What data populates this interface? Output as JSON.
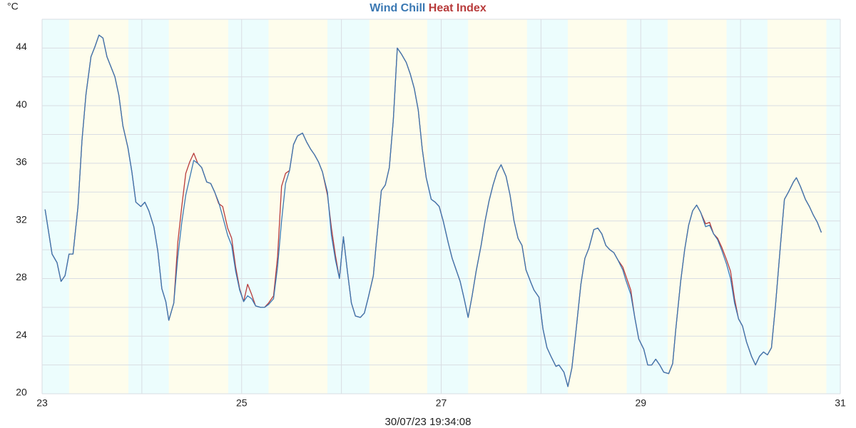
{
  "chart_data": {
    "type": "line",
    "y_label": "°C",
    "x_label": "30/07/23 19:34:08",
    "xlim": [
      23,
      31
    ],
    "xticks": [
      23,
      25,
      27,
      29,
      31
    ],
    "x_minor_ticks": [
      24,
      26,
      28,
      30
    ],
    "ylim": [
      20,
      46
    ],
    "yticks": [
      20,
      24,
      28,
      32,
      36,
      40,
      44
    ],
    "y_minor_ticks": [
      22,
      26,
      30,
      34,
      38,
      42,
      46
    ],
    "grid": true,
    "night_color": "#ecfdfd",
    "day_color": "#fefdec",
    "day_periods": [
      [
        23.27,
        23.865
      ],
      [
        24.27,
        24.865
      ],
      [
        25.27,
        25.86
      ],
      [
        26.28,
        26.86
      ],
      [
        27.27,
        27.86
      ],
      [
        28.27,
        28.86
      ],
      [
        29.27,
        29.86
      ],
      [
        30.27,
        30.86
      ]
    ],
    "x": [
      23.03,
      23.1,
      23.15,
      23.19,
      23.23,
      23.27,
      23.31,
      23.36,
      23.4,
      23.44,
      23.49,
      23.53,
      23.57,
      23.61,
      23.65,
      23.69,
      23.73,
      23.77,
      23.81,
      23.86,
      23.9,
      23.94,
      23.99,
      24.03,
      24.07,
      24.12,
      24.16,
      24.2,
      24.24,
      24.27,
      24.32,
      24.36,
      24.4,
      24.44,
      24.48,
      24.52,
      24.56,
      24.6,
      24.65,
      24.69,
      24.73,
      24.77,
      24.81,
      24.86,
      24.9,
      24.94,
      24.98,
      25.02,
      25.06,
      25.1,
      25.14,
      25.19,
      25.23,
      25.27,
      25.32,
      25.36,
      25.4,
      25.44,
      25.48,
      25.52,
      25.56,
      25.61,
      25.65,
      25.69,
      25.73,
      25.77,
      25.81,
      25.86,
      25.9,
      25.94,
      25.98,
      26.02,
      26.06,
      26.1,
      26.14,
      26.19,
      26.23,
      26.27,
      26.32,
      26.35,
      26.4,
      26.44,
      26.48,
      26.52,
      26.56,
      26.6,
      26.65,
      26.69,
      26.73,
      26.77,
      26.81,
      26.85,
      26.9,
      26.94,
      26.98,
      27.02,
      27.07,
      27.11,
      27.15,
      27.19,
      27.23,
      27.27,
      27.31,
      27.35,
      27.4,
      27.44,
      27.48,
      27.52,
      27.56,
      27.6,
      27.65,
      27.69,
      27.73,
      27.77,
      27.81,
      27.85,
      27.9,
      27.93,
      27.98,
      28.02,
      28.06,
      28.1,
      28.15,
      28.18,
      28.23,
      28.27,
      28.31,
      28.35,
      28.4,
      28.44,
      28.48,
      28.53,
      28.57,
      28.61,
      28.65,
      28.69,
      28.73,
      28.77,
      28.82,
      28.85,
      28.9,
      28.94,
      28.98,
      29.03,
      29.07,
      29.11,
      29.15,
      29.19,
      29.23,
      29.28,
      29.32,
      29.35,
      29.4,
      29.44,
      29.48,
      29.52,
      29.56,
      29.6,
      29.65,
      29.69,
      29.73,
      29.77,
      29.81,
      29.86,
      29.9,
      29.94,
      29.98,
      30.02,
      30.06,
      30.11,
      30.15,
      30.19,
      30.23,
      30.27,
      30.31,
      30.35,
      30.4,
      30.44,
      30.48,
      30.53,
      30.56,
      30.6,
      30.65,
      30.69,
      30.73,
      30.77,
      30.81
    ],
    "series": [
      {
        "name": "Heat Index",
        "color": "#b83b3b",
        "values": [
          32.8,
          29.7,
          29.1,
          27.8,
          28.2,
          29.7,
          29.7,
          33.0,
          37.6,
          40.8,
          43.4,
          44.1,
          44.9,
          44.7,
          43.4,
          42.7,
          42.0,
          40.7,
          38.6,
          37.1,
          35.4,
          33.3,
          33.0,
          33.3,
          32.7,
          31.6,
          29.9,
          27.3,
          26.4,
          25.1,
          26.3,
          30.5,
          33.0,
          35.3,
          36.1,
          36.7,
          36.0,
          35.7,
          34.7,
          34.6,
          34.0,
          33.2,
          33.0,
          31.5,
          30.8,
          28.8,
          27.3,
          26.4,
          27.6,
          26.9,
          26.1,
          26.0,
          26.0,
          26.3,
          26.8,
          29.5,
          34.4,
          35.3,
          35.5,
          37.3,
          37.9,
          38.1,
          37.5,
          37.0,
          36.6,
          36.1,
          35.4,
          33.8,
          31.5,
          29.6,
          28.0,
          30.9,
          28.5,
          26.3,
          25.4,
          25.3,
          25.6,
          26.7,
          28.2,
          30.5,
          34.1,
          34.5,
          35.7,
          39.0,
          44.0,
          43.6,
          43.0,
          42.2,
          41.2,
          39.7,
          37.0,
          35.0,
          33.5,
          33.3,
          33.0,
          32.0,
          30.5,
          29.4,
          28.6,
          27.8,
          26.6,
          25.3,
          26.8,
          28.5,
          30.3,
          32.0,
          33.4,
          34.5,
          35.4,
          35.9,
          35.1,
          33.8,
          32.0,
          30.8,
          30.3,
          28.6,
          27.7,
          27.2,
          26.7,
          24.5,
          23.2,
          22.6,
          21.9,
          22.0,
          21.5,
          20.5,
          21.8,
          24.3,
          27.6,
          29.4,
          30.1,
          31.4,
          31.5,
          31.1,
          30.3,
          30.0,
          29.8,
          29.3,
          28.8,
          28.2,
          27.2,
          25.3,
          23.8,
          23.1,
          22.0,
          22.0,
          22.4,
          22.0,
          21.5,
          21.4,
          22.1,
          24.4,
          27.8,
          30.0,
          31.7,
          32.7,
          33.1,
          32.6,
          31.8,
          31.9,
          31.1,
          30.8,
          30.2,
          29.3,
          28.5,
          26.6,
          25.2,
          24.7,
          23.6,
          22.6,
          22.0,
          22.6,
          22.9,
          22.7,
          23.2,
          26.1,
          30.3,
          33.5,
          34.0,
          34.7,
          35.0,
          34.4,
          33.5,
          33.0,
          32.4,
          31.9,
          31.2
        ]
      },
      {
        "name": "Wind Chill",
        "color": "#3a78b3",
        "values": [
          32.8,
          29.7,
          29.1,
          27.8,
          28.2,
          29.7,
          29.7,
          33.0,
          37.6,
          40.8,
          43.4,
          44.1,
          44.9,
          44.7,
          43.4,
          42.7,
          42.0,
          40.7,
          38.6,
          37.1,
          35.4,
          33.3,
          33.0,
          33.3,
          32.7,
          31.6,
          29.9,
          27.3,
          26.4,
          25.1,
          26.3,
          29.5,
          31.9,
          33.8,
          35.0,
          36.2,
          36.0,
          35.7,
          34.7,
          34.6,
          34.0,
          33.3,
          32.3,
          31.0,
          30.3,
          28.5,
          27.2,
          26.4,
          26.8,
          26.6,
          26.1,
          26.0,
          26.0,
          26.2,
          26.6,
          28.8,
          32.0,
          34.6,
          35.5,
          37.3,
          37.9,
          38.1,
          37.5,
          37.0,
          36.6,
          36.1,
          35.4,
          34.0,
          31.0,
          29.3,
          28.0,
          30.9,
          28.5,
          26.3,
          25.4,
          25.3,
          25.6,
          26.7,
          28.2,
          30.5,
          34.1,
          34.5,
          35.7,
          39.0,
          44.0,
          43.6,
          43.0,
          42.2,
          41.2,
          39.7,
          37.0,
          35.0,
          33.5,
          33.3,
          33.0,
          32.0,
          30.5,
          29.4,
          28.6,
          27.8,
          26.6,
          25.3,
          26.8,
          28.5,
          30.3,
          32.0,
          33.4,
          34.5,
          35.4,
          35.9,
          35.1,
          33.8,
          32.0,
          30.8,
          30.3,
          28.6,
          27.7,
          27.2,
          26.7,
          24.5,
          23.2,
          22.6,
          21.9,
          22.0,
          21.5,
          20.5,
          21.8,
          24.3,
          27.6,
          29.4,
          30.1,
          31.4,
          31.5,
          31.1,
          30.3,
          30.0,
          29.8,
          29.3,
          28.6,
          27.9,
          26.9,
          25.3,
          23.8,
          23.1,
          22.0,
          22.0,
          22.4,
          22.0,
          21.5,
          21.4,
          22.1,
          24.4,
          27.8,
          30.0,
          31.7,
          32.7,
          33.1,
          32.6,
          31.6,
          31.7,
          31.1,
          30.7,
          30.0,
          29.0,
          28.0,
          26.3,
          25.2,
          24.7,
          23.6,
          22.6,
          22.0,
          22.6,
          22.9,
          22.7,
          23.2,
          26.1,
          30.3,
          33.5,
          34.0,
          34.7,
          35.0,
          34.4,
          33.5,
          33.0,
          32.4,
          31.9,
          31.2
        ]
      }
    ]
  }
}
